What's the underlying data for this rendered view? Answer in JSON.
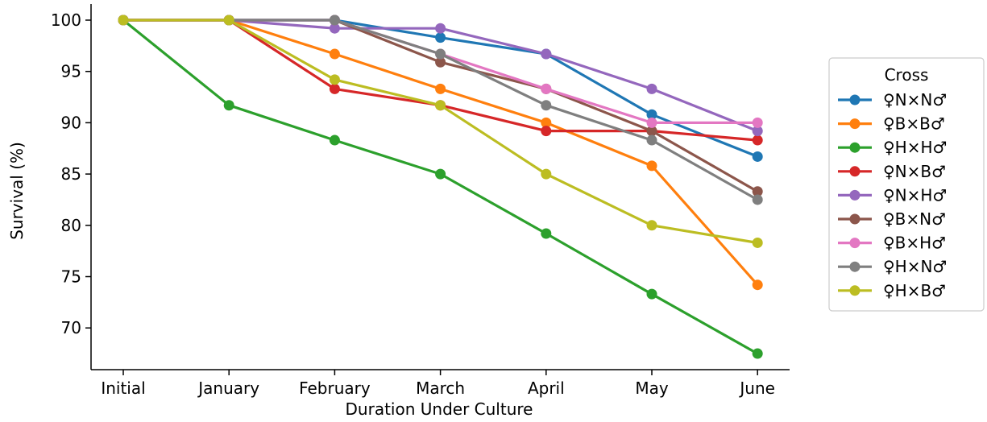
{
  "chart_data": {
    "type": "line",
    "title": "",
    "xlabel": "Duration Under Culture",
    "ylabel": "Survival (%)",
    "categories": [
      "Initial",
      "January",
      "February",
      "March",
      "April",
      "May",
      "June"
    ],
    "ylim": [
      66,
      101.5
    ],
    "yticks": [
      70,
      75,
      80,
      85,
      90,
      95,
      100
    ],
    "grid": false,
    "legend": {
      "title": "Cross",
      "placement": "right, outside plot"
    },
    "series": [
      {
        "name": "♀N×N♂",
        "color": "#1f77b4",
        "values": [
          100,
          100,
          100,
          98.3,
          96.7,
          90.8,
          86.7
        ]
      },
      {
        "name": "♀B×B♂",
        "color": "#ff7f0e",
        "values": [
          100,
          100,
          96.7,
          93.3,
          90.0,
          85.8,
          74.2
        ]
      },
      {
        "name": "♀H×H♂",
        "color": "#2ca02c",
        "values": [
          100,
          91.7,
          88.3,
          85.0,
          79.2,
          73.3,
          67.5
        ]
      },
      {
        "name": "♀N×B♂",
        "color": "#d62728",
        "values": [
          100,
          100,
          93.3,
          91.7,
          89.2,
          89.2,
          88.3
        ]
      },
      {
        "name": "♀N×H♂",
        "color": "#9467bd",
        "values": [
          100,
          100,
          99.2,
          99.2,
          96.7,
          93.3,
          89.2
        ]
      },
      {
        "name": "♀B×N♂",
        "color": "#8c564b",
        "values": [
          100,
          100,
          100,
          95.9,
          93.3,
          89.2,
          83.3
        ]
      },
      {
        "name": "♀B×H♂",
        "color": "#e377c2",
        "values": [
          100,
          100,
          100,
          96.7,
          93.3,
          90.0,
          90.0
        ]
      },
      {
        "name": "♀H×N♂",
        "color": "#7f7f7f",
        "values": [
          100,
          100,
          100,
          96.7,
          91.7,
          88.3,
          82.5
        ]
      },
      {
        "name": "♀H×B♂",
        "color": "#bcbd22",
        "values": [
          100,
          100,
          94.2,
          91.7,
          85.0,
          80.0,
          78.3
        ]
      }
    ]
  }
}
